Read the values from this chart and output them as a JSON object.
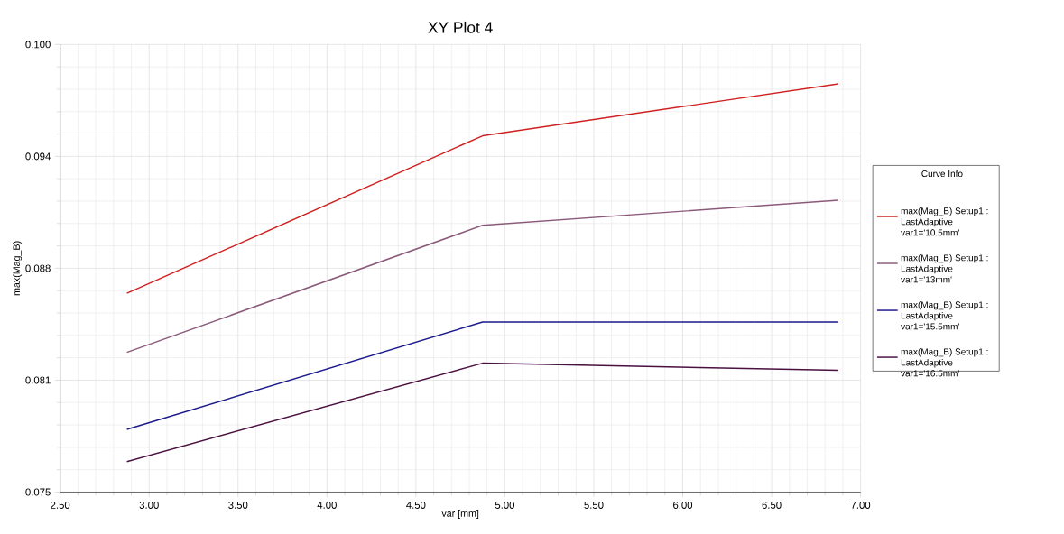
{
  "chart_data": {
    "type": "line",
    "title": "XY Plot 4",
    "xlabel": "var [mm]",
    "ylabel": "max(Mag_B)",
    "legend_title": "Curve Info",
    "x": [
      2.875,
      4.875,
      6.875
    ],
    "series": [
      {
        "name": "max(Mag_B) Setup1 : LastAdaptive var1='10.5mm'",
        "color": "#d02020",
        "values": [
          0.0861,
          0.0949,
          0.0978
        ]
      },
      {
        "name": "max(Mag_B) Setup1 : LastAdaptive var1='13mm'",
        "color": "#8b5a7b",
        "values": [
          0.0828,
          0.0899,
          0.0913
        ]
      },
      {
        "name": "max(Mag_B) Setup1 : LastAdaptive var1='15.5mm'",
        "color": "#1a1a8c",
        "values": [
          0.0785,
          0.0845,
          0.0845
        ]
      },
      {
        "name": "max(Mag_B) Setup1 : LastAdaptive var1='16.5mm'",
        "color": "#4a1040",
        "values": [
          0.0767,
          0.0822,
          0.0818
        ]
      }
    ],
    "xlim": [
      2.5,
      7.0
    ],
    "xticks": [
      {
        "value": 2.5,
        "label": "2.50"
      },
      {
        "value": 3.0,
        "label": "3.00"
      },
      {
        "value": 3.5,
        "label": "3.50"
      },
      {
        "value": 4.0,
        "label": "4.00"
      },
      {
        "value": 4.5,
        "label": "4.50"
      },
      {
        "value": 5.0,
        "label": "5.00"
      },
      {
        "value": 5.5,
        "label": "5.50"
      },
      {
        "value": 6.0,
        "label": "6.00"
      },
      {
        "value": 6.5,
        "label": "6.50"
      },
      {
        "value": 7.0,
        "label": "7.00"
      }
    ],
    "ylim": [
      0.075,
      0.1
    ],
    "yticks": [
      {
        "value": 0.075,
        "label": "0.075"
      },
      {
        "value": 0.08125,
        "label": "0.081"
      },
      {
        "value": 0.0875,
        "label": "0.088"
      },
      {
        "value": 0.09375,
        "label": "0.094"
      },
      {
        "value": 0.1,
        "label": "0.100"
      }
    ],
    "grid": true,
    "legend": "right",
    "line_style": "solid"
  }
}
